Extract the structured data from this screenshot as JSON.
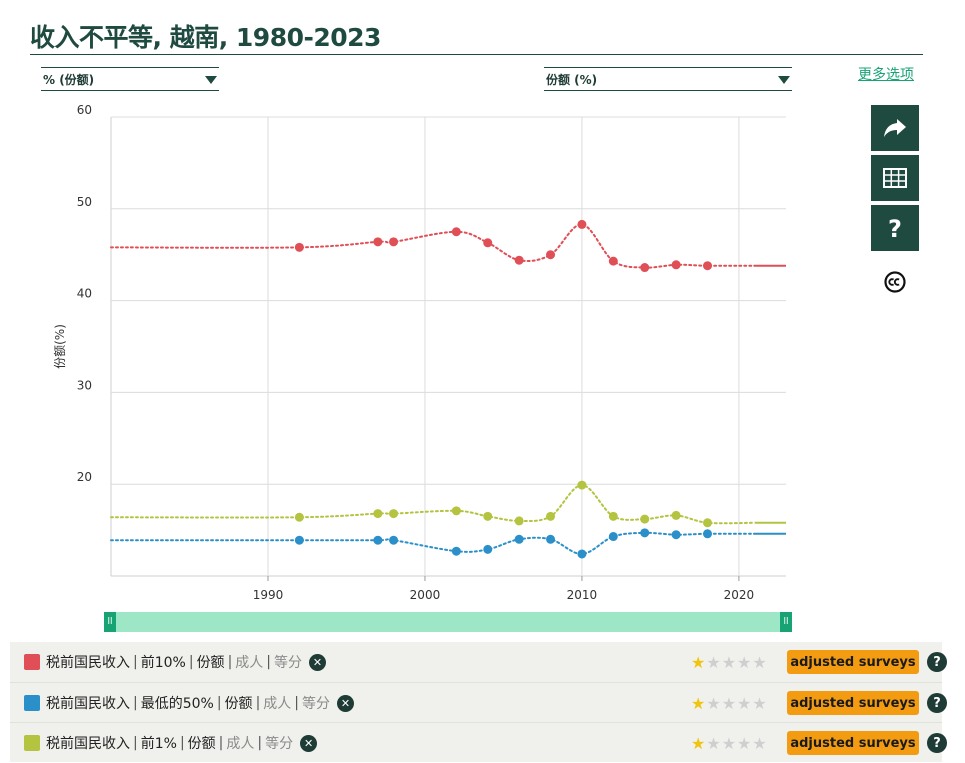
{
  "page": {
    "title": "收入不平等, 越南, 1980-2023",
    "more_options": "更多选项"
  },
  "selectors": {
    "left": "% (份额)",
    "right": "份额 (%)"
  },
  "icons": {
    "share": "share-icon",
    "table": "table-icon",
    "help": "question-icon",
    "license": "creative-commons-icon"
  },
  "legend": {
    "rows": [
      {
        "color": "#e04e56",
        "parts": [
          "税前国民收入",
          "前10%",
          "份额"
        ],
        "muted": [
          "成人",
          "等分"
        ],
        "rating": 1,
        "badge": "adjusted surveys"
      },
      {
        "color": "#2b8fc9",
        "parts": [
          "税前国民收入",
          "最低的50%",
          "份额"
        ],
        "muted": [
          "成人",
          "等分"
        ],
        "rating": 1,
        "badge": "adjusted surveys"
      },
      {
        "color": "#b4c440",
        "parts": [
          "税前国民收入",
          "前1%",
          "份额"
        ],
        "muted": [
          "成人",
          "等分"
        ],
        "rating": 1,
        "badge": "adjusted surveys"
      }
    ]
  },
  "chart_data": {
    "type": "line",
    "title": "收入不平等, 越南, 1980-2023",
    "xlabel": "",
    "ylabel": "份额(%)",
    "xlim": [
      1980,
      2023
    ],
    "ylim": [
      10,
      60
    ],
    "x_ticks": [
      1990,
      2000,
      2010,
      2020
    ],
    "y_ticks": [
      20,
      30,
      40,
      50,
      60
    ],
    "grid": true,
    "series": [
      {
        "name": "税前国民收入 | 前10% | 份额 | 成人 | 等分",
        "color": "#e04e56",
        "line": [
          [
            1980,
            45.8
          ],
          [
            1992,
            45.8
          ],
          [
            1997,
            46.4
          ],
          [
            1998,
            46.4
          ],
          [
            2002,
            47.5
          ],
          [
            2004,
            46.3
          ],
          [
            2006,
            44.4
          ],
          [
            2008,
            45.0
          ],
          [
            2010,
            48.3
          ],
          [
            2012,
            44.3
          ],
          [
            2014,
            43.6
          ],
          [
            2016,
            43.9
          ],
          [
            2018,
            43.8
          ],
          [
            2023,
            43.8
          ]
        ],
        "points": [
          [
            1992,
            45.8
          ],
          [
            1997,
            46.4
          ],
          [
            1998,
            46.4
          ],
          [
            2002,
            47.5
          ],
          [
            2004,
            46.3
          ],
          [
            2006,
            44.4
          ],
          [
            2008,
            45.0
          ],
          [
            2010,
            48.3
          ],
          [
            2012,
            44.3
          ],
          [
            2014,
            43.6
          ],
          [
            2016,
            43.9
          ],
          [
            2018,
            43.8
          ]
        ],
        "solid_from": 2021
      },
      {
        "name": "税前国民收入 | 最低的50% | 份额 | 成人 | 等分",
        "color": "#2b8fc9",
        "line": [
          [
            1980,
            13.9
          ],
          [
            1992,
            13.9
          ],
          [
            1997,
            13.9
          ],
          [
            1998,
            13.9
          ],
          [
            2002,
            12.7
          ],
          [
            2004,
            12.9
          ],
          [
            2006,
            14.0
          ],
          [
            2008,
            14.0
          ],
          [
            2010,
            12.4
          ],
          [
            2012,
            14.3
          ],
          [
            2014,
            14.7
          ],
          [
            2016,
            14.5
          ],
          [
            2018,
            14.6
          ],
          [
            2023,
            14.6
          ]
        ],
        "points": [
          [
            1992,
            13.9
          ],
          [
            1997,
            13.9
          ],
          [
            1998,
            13.9
          ],
          [
            2002,
            12.7
          ],
          [
            2004,
            12.9
          ],
          [
            2006,
            14.0
          ],
          [
            2008,
            14.0
          ],
          [
            2010,
            12.4
          ],
          [
            2012,
            14.3
          ],
          [
            2014,
            14.7
          ],
          [
            2016,
            14.5
          ],
          [
            2018,
            14.6
          ]
        ],
        "solid_from": 2021
      },
      {
        "name": "税前国民收入 | 前1% | 份额 | 成人 | 等分",
        "color": "#b4c440",
        "line": [
          [
            1980,
            16.4
          ],
          [
            1992,
            16.4
          ],
          [
            1997,
            16.8
          ],
          [
            1998,
            16.8
          ],
          [
            2002,
            17.1
          ],
          [
            2004,
            16.5
          ],
          [
            2006,
            16.0
          ],
          [
            2008,
            16.5
          ],
          [
            2010,
            19.9
          ],
          [
            2012,
            16.5
          ],
          [
            2014,
            16.2
          ],
          [
            2016,
            16.6
          ],
          [
            2018,
            15.8
          ],
          [
            2023,
            15.8
          ]
        ],
        "points": [
          [
            1992,
            16.4
          ],
          [
            1997,
            16.8
          ],
          [
            1998,
            16.8
          ],
          [
            2002,
            17.1
          ],
          [
            2004,
            16.5
          ],
          [
            2006,
            16.0
          ],
          [
            2008,
            16.5
          ],
          [
            2010,
            19.9
          ],
          [
            2012,
            16.5
          ],
          [
            2014,
            16.2
          ],
          [
            2016,
            16.6
          ],
          [
            2018,
            15.8
          ]
        ],
        "solid_from": 2021
      }
    ]
  }
}
